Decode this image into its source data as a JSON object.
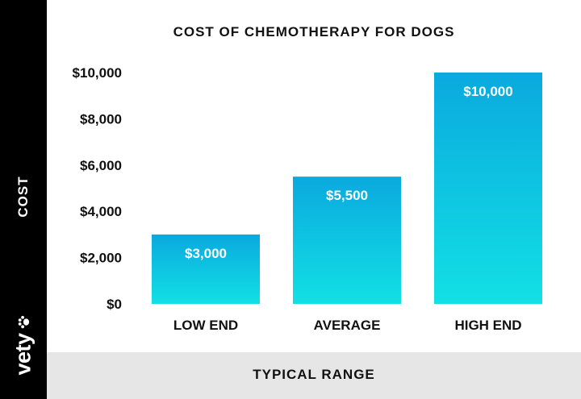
{
  "chart_data": {
    "type": "bar",
    "title": "COST OF CHEMOTHERAPY FOR DOGS",
    "xlabel": "TYPICAL RANGE",
    "ylabel": "COST",
    "categories": [
      "LOW END",
      "AVERAGE",
      "HIGH END"
    ],
    "values": [
      3000,
      5500,
      10000
    ],
    "value_labels": [
      "$3,000",
      "$5,500",
      "$10,000"
    ],
    "ylim": [
      0,
      10000
    ],
    "yticks": [
      0,
      2000,
      4000,
      6000,
      8000,
      10000
    ],
    "ytick_labels": [
      "$0",
      "$2,000",
      "$4,000",
      "$6,000",
      "$8,000",
      "$10,000"
    ],
    "grid": false,
    "bar_color_top": "#0aa9de",
    "bar_color_bottom": "#12e0e4"
  },
  "brand": {
    "name": "vety",
    "icon": "paw-icon"
  }
}
